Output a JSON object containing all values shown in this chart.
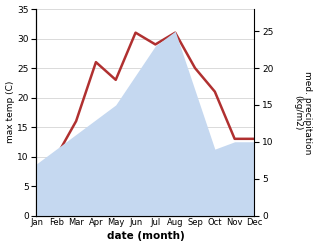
{
  "months": [
    "Jan",
    "Feb",
    "Mar",
    "Apr",
    "May",
    "Jun",
    "Jul",
    "Aug",
    "Sep",
    "Oct",
    "Nov",
    "Dec"
  ],
  "temperature": [
    4,
    10,
    16,
    26,
    23,
    31,
    29,
    31,
    25,
    21,
    13,
    13
  ],
  "precipitation": [
    7,
    9,
    11,
    13,
    15,
    19,
    23,
    25,
    17,
    9,
    10,
    10
  ],
  "temp_color": "#b03030",
  "precip_color": "#c5d8f0",
  "title": "",
  "xlabel": "date (month)",
  "ylabel_left": "max temp (C)",
  "ylabel_right": "med. precipitation\n(kg/m2)",
  "ylim_left": [
    0,
    35
  ],
  "ylim_right": [
    0,
    28
  ],
  "yticks_left": [
    0,
    5,
    10,
    15,
    20,
    25,
    30,
    35
  ],
  "yticks_right": [
    0,
    5,
    10,
    15,
    20,
    25
  ],
  "background_color": "#ffffff",
  "grid_color": "#cccccc"
}
